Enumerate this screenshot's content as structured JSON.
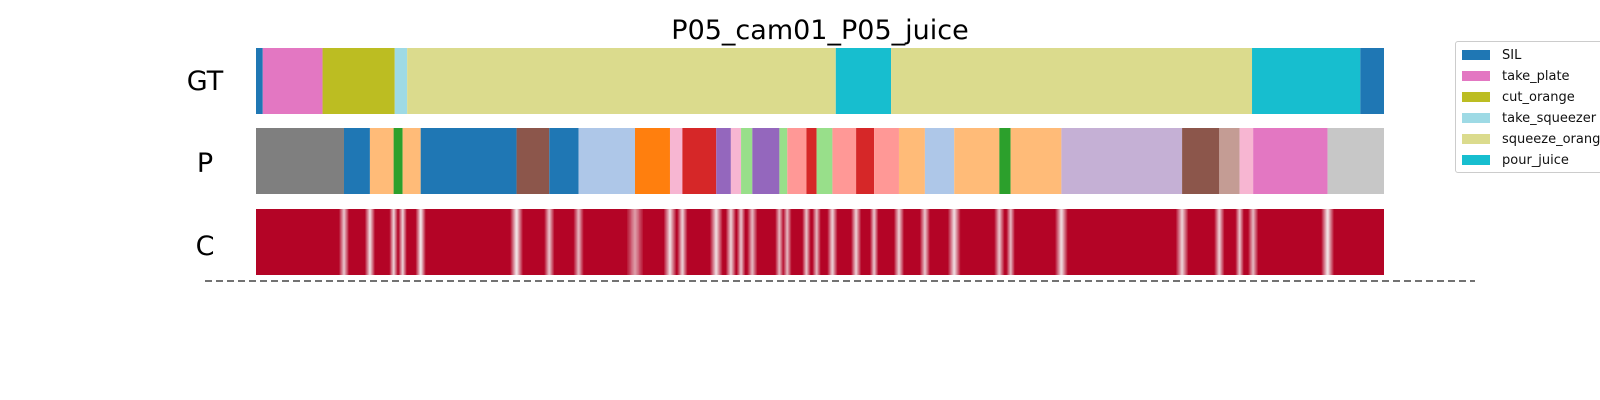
{
  "chart_data": {
    "type": "segmentation",
    "title": "P05_cam01_P05_juice",
    "x_range": [
      0,
      1000
    ],
    "rows": [
      {
        "label": "GT",
        "segments": [
          {
            "start": 0,
            "end": 6,
            "color": "#1f77b4"
          },
          {
            "start": 6,
            "end": 59,
            "color": "#e377c2"
          },
          {
            "start": 59,
            "end": 123,
            "color": "#bcbd22"
          },
          {
            "start": 123,
            "end": 134,
            "color": "#9edae5"
          },
          {
            "start": 134,
            "end": 514,
            "color": "#dbdb8d"
          },
          {
            "start": 514,
            "end": 563,
            "color": "#17becf"
          },
          {
            "start": 563,
            "end": 883,
            "color": "#dbdb8d"
          },
          {
            "start": 883,
            "end": 979,
            "color": "#17becf"
          },
          {
            "start": 979,
            "end": 1000,
            "color": "#1f77b4"
          }
        ]
      },
      {
        "label": "P",
        "segments": [
          {
            "start": 0,
            "end": 78,
            "color": "#7f7f7f"
          },
          {
            "start": 78,
            "end": 101,
            "color": "#1f77b4"
          },
          {
            "start": 101,
            "end": 122,
            "color": "#ffbb78"
          },
          {
            "start": 122,
            "end": 130,
            "color": "#2ca02c"
          },
          {
            "start": 130,
            "end": 146,
            "color": "#ffbb78"
          },
          {
            "start": 146,
            "end": 231,
            "color": "#1f77b4"
          },
          {
            "start": 231,
            "end": 260,
            "color": "#8c564b"
          },
          {
            "start": 260,
            "end": 286,
            "color": "#1f77b4"
          },
          {
            "start": 286,
            "end": 336,
            "color": "#aec7e8"
          },
          {
            "start": 336,
            "end": 367,
            "color": "#ff7f0e"
          },
          {
            "start": 367,
            "end": 378,
            "color": "#f7b6d2"
          },
          {
            "start": 378,
            "end": 408,
            "color": "#d62728"
          },
          {
            "start": 408,
            "end": 421,
            "color": "#9467bd"
          },
          {
            "start": 421,
            "end": 430,
            "color": "#f7b6d2"
          },
          {
            "start": 430,
            "end": 440,
            "color": "#98df8a"
          },
          {
            "start": 440,
            "end": 464,
            "color": "#9467bd"
          },
          {
            "start": 464,
            "end": 471,
            "color": "#98df8a"
          },
          {
            "start": 471,
            "end": 488,
            "color": "#ff9896"
          },
          {
            "start": 488,
            "end": 497,
            "color": "#d62728"
          },
          {
            "start": 497,
            "end": 511,
            "color": "#98df8a"
          },
          {
            "start": 511,
            "end": 532,
            "color": "#ff9896"
          },
          {
            "start": 532,
            "end": 548,
            "color": "#d62728"
          },
          {
            "start": 548,
            "end": 570,
            "color": "#ff9896"
          },
          {
            "start": 570,
            "end": 593,
            "color": "#ffbb78"
          },
          {
            "start": 593,
            "end": 619,
            "color": "#aec7e8"
          },
          {
            "start": 619,
            "end": 659,
            "color": "#ffbb78"
          },
          {
            "start": 659,
            "end": 669,
            "color": "#2ca02c"
          },
          {
            "start": 669,
            "end": 714,
            "color": "#ffbb78"
          },
          {
            "start": 714,
            "end": 821,
            "color": "#c5b0d5"
          },
          {
            "start": 821,
            "end": 854,
            "color": "#8c564b"
          },
          {
            "start": 854,
            "end": 872,
            "color": "#c49c94"
          },
          {
            "start": 872,
            "end": 884,
            "color": "#f7b6d2"
          },
          {
            "start": 884,
            "end": 950,
            "color": "#e377c2"
          },
          {
            "start": 950,
            "end": 1000,
            "color": "#c7c7c7"
          }
        ]
      },
      {
        "label": "C",
        "type": "confidence",
        "base_color": "#b40426",
        "dips": [
          {
            "x": 78,
            "depth": 0.75,
            "w": 1.2
          },
          {
            "x": 101,
            "depth": 0.85,
            "w": 1.2
          },
          {
            "x": 122,
            "depth": 0.8,
            "w": 1.0
          },
          {
            "x": 130,
            "depth": 0.8,
            "w": 1.0
          },
          {
            "x": 146,
            "depth": 0.9,
            "w": 1.2
          },
          {
            "x": 231,
            "depth": 0.9,
            "w": 1.5
          },
          {
            "x": 260,
            "depth": 0.75,
            "w": 1.2
          },
          {
            "x": 286,
            "depth": 0.7,
            "w": 1.2
          },
          {
            "x": 336,
            "depth": 0.6,
            "w": 2.0
          },
          {
            "x": 367,
            "depth": 0.85,
            "w": 1.5
          },
          {
            "x": 378,
            "depth": 0.8,
            "w": 1.2
          },
          {
            "x": 408,
            "depth": 0.85,
            "w": 1.5
          },
          {
            "x": 421,
            "depth": 0.8,
            "w": 1.2
          },
          {
            "x": 430,
            "depth": 0.75,
            "w": 1.0
          },
          {
            "x": 440,
            "depth": 0.7,
            "w": 1.2
          },
          {
            "x": 464,
            "depth": 0.7,
            "w": 1.0
          },
          {
            "x": 471,
            "depth": 0.7,
            "w": 1.0
          },
          {
            "x": 488,
            "depth": 0.75,
            "w": 1.0
          },
          {
            "x": 497,
            "depth": 0.7,
            "w": 1.0
          },
          {
            "x": 511,
            "depth": 0.8,
            "w": 1.2
          },
          {
            "x": 532,
            "depth": 0.8,
            "w": 1.2
          },
          {
            "x": 548,
            "depth": 0.75,
            "w": 1.0
          },
          {
            "x": 570,
            "depth": 0.8,
            "w": 1.2
          },
          {
            "x": 593,
            "depth": 0.75,
            "w": 1.2
          },
          {
            "x": 619,
            "depth": 0.85,
            "w": 1.5
          },
          {
            "x": 659,
            "depth": 0.75,
            "w": 1.2
          },
          {
            "x": 669,
            "depth": 0.7,
            "w": 1.0
          },
          {
            "x": 714,
            "depth": 0.85,
            "w": 1.5
          },
          {
            "x": 821,
            "depth": 0.8,
            "w": 1.5
          },
          {
            "x": 854,
            "depth": 0.8,
            "w": 1.2
          },
          {
            "x": 872,
            "depth": 0.75,
            "w": 1.0
          },
          {
            "x": 884,
            "depth": 0.7,
            "w": 1.2
          },
          {
            "x": 950,
            "depth": 0.9,
            "w": 1.5
          }
        ]
      }
    ],
    "legend": {
      "placement": "right",
      "entries": [
        {
          "label": "SIL",
          "color": "#1f77b4"
        },
        {
          "label": "take_plate",
          "color": "#e377c2"
        },
        {
          "label": "cut_orange",
          "color": "#bcbd22"
        },
        {
          "label": "take_squeezer",
          "color": "#9edae5"
        },
        {
          "label": "squeeze_orange",
          "color": "#dbdb8d"
        },
        {
          "label": "pour_juice",
          "color": "#17becf"
        }
      ]
    }
  }
}
